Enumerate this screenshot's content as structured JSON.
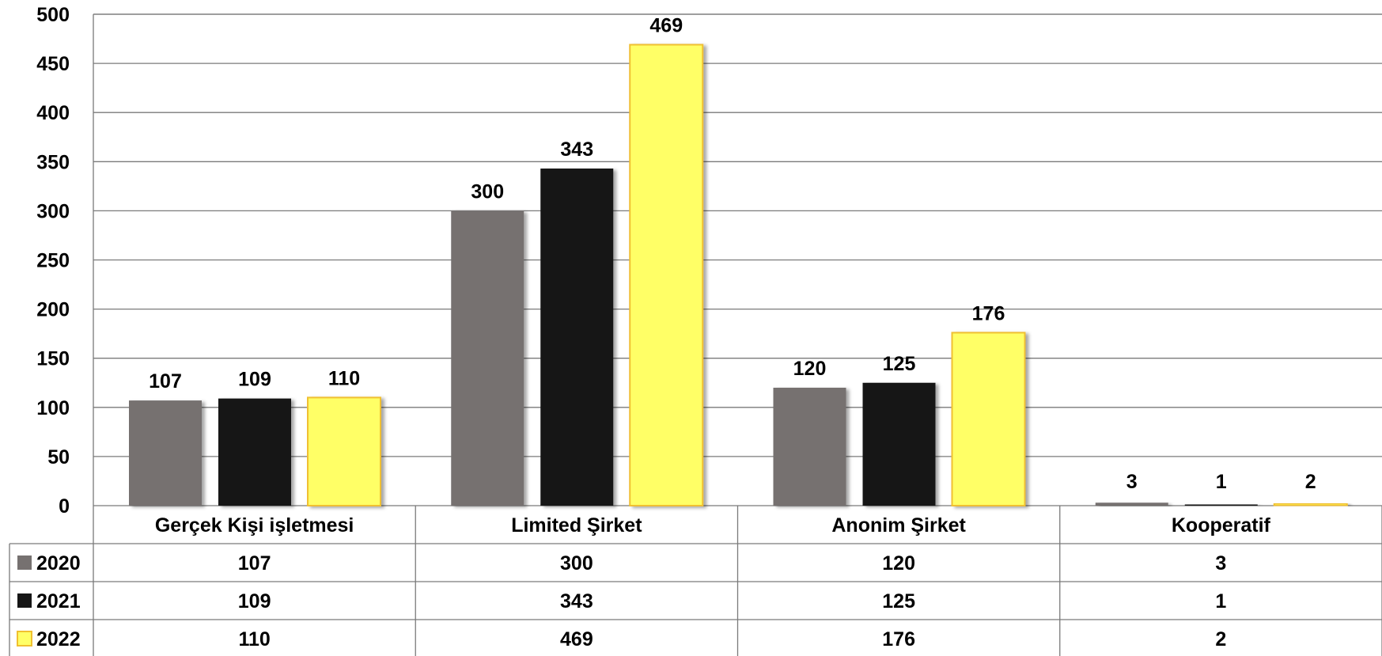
{
  "chart_data": {
    "type": "bar",
    "categories": [
      "Gerçek Kişi işletmesi",
      "Limited Şirket",
      "Anonim Şirket",
      "Kooperatif"
    ],
    "series": [
      {
        "name": "2020",
        "values": [
          107,
          300,
          120,
          3
        ],
        "color": "#767170"
      },
      {
        "name": "2021",
        "values": [
          109,
          343,
          125,
          1
        ],
        "color": "#161616"
      },
      {
        "name": "2022",
        "values": [
          110,
          469,
          176,
          2
        ],
        "color": "#FFFF66",
        "stroke": "#F0C030"
      }
    ],
    "title": "",
    "xlabel": "",
    "ylabel": "",
    "ylim": [
      0,
      500
    ],
    "yticks": [
      0,
      50,
      100,
      150,
      200,
      250,
      300,
      350,
      400,
      450,
      500
    ],
    "grid": true,
    "data_labels": true,
    "data_table": true,
    "legend_placement": "data-table-left"
  }
}
